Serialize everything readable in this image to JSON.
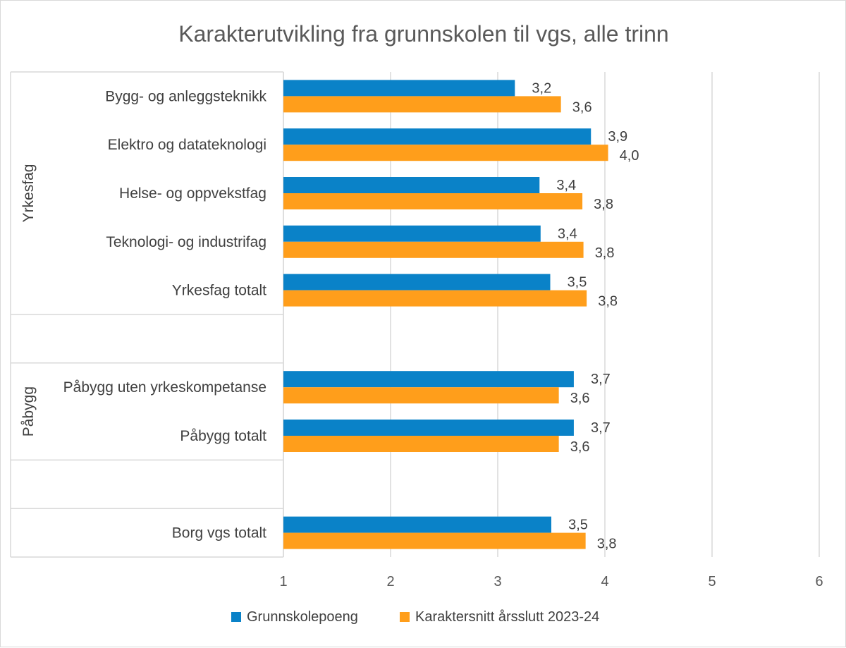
{
  "chart_data": {
    "type": "bar",
    "orientation": "horizontal",
    "title": "Karakterutvikling fra grunnskolen til vgs, alle trinn",
    "xlabel": "",
    "ylabel": "",
    "xlim": [
      1,
      6
    ],
    "xticks": [
      "1",
      "2",
      "3",
      "4",
      "5",
      "6"
    ],
    "grid": true,
    "legend_position": "bottom",
    "groups": [
      {
        "label": "Yrkesfag",
        "categories": [
          "Bygg- og anleggsteknikk",
          "Elektro og datateknologi",
          "Helse- og oppvekstfag",
          "Teknologi- og industrifag",
          "Yrkesfag totalt",
          ""
        ]
      },
      {
        "label": "Påbygg",
        "categories": [
          "Påbygg uten yrkeskompetanse",
          "Påbygg totalt",
          ""
        ]
      },
      {
        "label": "",
        "categories": [
          "Borg vgs totalt"
        ]
      }
    ],
    "categories": [
      "Bygg- og anleggsteknikk",
      "Elektro og datateknologi",
      "Helse- og oppvekstfag",
      "Teknologi- og industrifag",
      "Yrkesfag totalt",
      "",
      "Påbygg uten yrkeskompetanse",
      "Påbygg totalt",
      "",
      "Borg vgs totalt"
    ],
    "series": [
      {
        "name": "Grunnskolepoeng",
        "color": "#0a82c8",
        "values": [
          3.16,
          3.87,
          3.39,
          3.4,
          3.49,
          null,
          3.71,
          3.71,
          null,
          3.5
        ],
        "labels": [
          "3,2",
          "3,9",
          "3,4",
          "3,4",
          "3,5",
          "",
          "3,7",
          "3,7",
          "",
          "3,5"
        ]
      },
      {
        "name": "Karaktersnitt årsslutt 2023-24",
        "color": "#ff9e1b",
        "values": [
          3.59,
          4.03,
          3.79,
          3.8,
          3.83,
          null,
          3.57,
          3.57,
          null,
          3.82
        ],
        "labels": [
          "3,6",
          "4,0",
          "3,8",
          "3,8",
          "3,8",
          "",
          "3,6",
          "3,6",
          "",
          "3,8"
        ]
      }
    ]
  }
}
